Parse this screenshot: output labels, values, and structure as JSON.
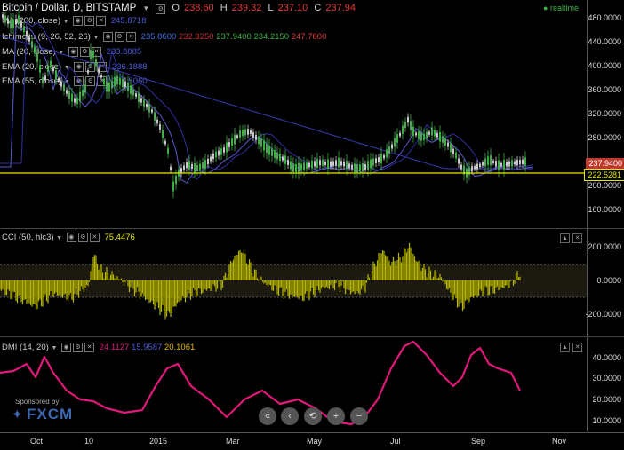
{
  "header": {
    "title": "Bitcoin / Dollar, D, BITSTAMP",
    "open_label": "O",
    "open_value": "238.60",
    "high_label": "H",
    "high_value": "239.32",
    "low_label": "L",
    "low_value": "237.10",
    "close_label": "C",
    "close_value": "237.94",
    "status": "realtime"
  },
  "legends": {
    "ma200": {
      "label": "MA (200, close)",
      "value": "245.8718"
    },
    "ichimoku": {
      "label": "Ichimoku (9, 26, 52, 26)",
      "v1": "235.8600",
      "v2": "232.3250",
      "v3": "237.9400",
      "v4": "234.2150",
      "v5": "247.7800"
    },
    "ma": {
      "label": "MA (20, close)",
      "value": "233.8885"
    },
    "ema1": {
      "label": "EMA (20, close)",
      "value": "236.1888"
    },
    "ema2": {
      "label": "EMA (55, close)",
      "value": "250.5060"
    },
    "cci": {
      "label": "CCI (50, hlc3)",
      "value": "75.4476"
    },
    "dmi": {
      "label": "DMI (14, 20)",
      "v1": "24.1127",
      "v2": "15.9587",
      "v3": "20.1061"
    }
  },
  "price_axis": {
    "ticks": [
      "480.0000",
      "440.0000",
      "400.0000",
      "360.0000",
      "320.0000",
      "280.0000",
      "200.0000",
      "160.0000"
    ],
    "current_tag": "237.9400",
    "line_tag": "222.5281"
  },
  "cci_axis": {
    "ticks": [
      "200.0000",
      "0.0000",
      "-200.0000"
    ]
  },
  "dmi_axis": {
    "ticks": [
      "40.0000",
      "30.0000",
      "20.0000",
      "10.0000"
    ]
  },
  "x_axis": {
    "labels": [
      "Oct",
      "10",
      "2015",
      "Mar",
      "May",
      "Jul",
      "Sep",
      "Nov"
    ]
  },
  "sponsor": {
    "text": "Sponsored by",
    "brand": "FXCM"
  },
  "nav": {
    "buttons": [
      "«",
      "‹",
      "⟲",
      "+",
      "−"
    ]
  },
  "colors": {
    "up": "#3cb043",
    "down": "#c8c8c8",
    "ichimoku": "#3a3ab0",
    "hline": "#e6e600",
    "cci": "#b5b500",
    "dmi": "#e0197a",
    "tag_current": "#c0392b",
    "tag_line": "#e6e600"
  }
}
